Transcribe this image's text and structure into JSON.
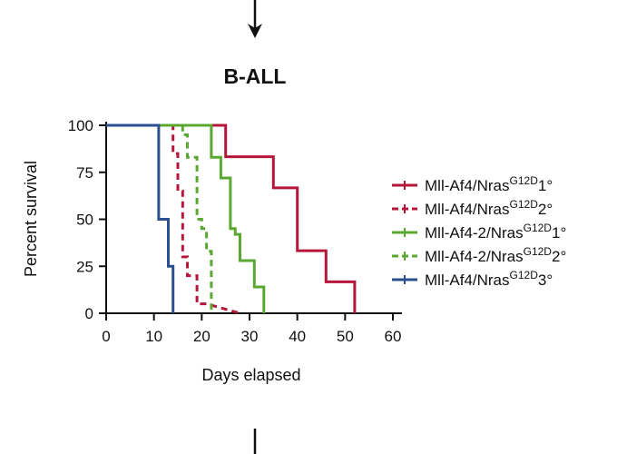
{
  "chart_data": {
    "type": "line",
    "title": "B-ALL",
    "xlabel": "Days elapsed",
    "ylabel": "Percent survival",
    "xlim": [
      0,
      60
    ],
    "ylim": [
      0,
      100
    ],
    "xticks": [
      "0",
      "10",
      "20",
      "30",
      "40",
      "50",
      "60"
    ],
    "yticks": [
      "0",
      "25",
      "50",
      "75",
      "100"
    ],
    "grid": false,
    "legend_position": "right",
    "series": [
      {
        "name": "Mll-Af4/NrasG12D1°",
        "label_parts": [
          "Mll-Af4/Nras",
          "G12D",
          "1°"
        ],
        "color": "#b5173a",
        "dash": "solid",
        "x": [
          0,
          25,
          25,
          35,
          35,
          40,
          40,
          46,
          46,
          52,
          52
        ],
        "y": [
          100,
          100,
          83.3,
          83.3,
          66.7,
          66.7,
          33.3,
          33.3,
          16.7,
          16.7,
          0
        ]
      },
      {
        "name": "Mll-Af4/NrasG12D2°",
        "label_parts": [
          "Mll-Af4/Nras",
          "G12D",
          "2°"
        ],
        "color": "#b5173a",
        "dash": "dashed",
        "x": [
          0,
          14,
          14,
          15,
          15,
          16,
          16,
          17,
          17,
          19,
          19,
          21,
          21,
          28
        ],
        "y": [
          100,
          100,
          85,
          85,
          65,
          65,
          30,
          30,
          20,
          20,
          5,
          5,
          5,
          0
        ]
      },
      {
        "name": "Mll-Af4-2/NrasG12D1°",
        "label_parts": [
          "Mll-Af4-2/Nras",
          "G12D",
          "1°"
        ],
        "color": "#5aa832",
        "dash": "solid",
        "x": [
          0,
          22,
          22,
          24,
          24,
          26,
          26,
          27,
          27,
          28,
          28,
          31,
          31,
          33,
          33
        ],
        "y": [
          100,
          100,
          83,
          83,
          72,
          72,
          45,
          45,
          42,
          42,
          28,
          28,
          14,
          14,
          0
        ]
      },
      {
        "name": "Mll-Af4-2/NrasG12D2°",
        "label_parts": [
          "Mll-Af4-2/Nras",
          "G12D",
          "2°"
        ],
        "color": "#5aa832",
        "dash": "dashed",
        "x": [
          0,
          16,
          16,
          17,
          17,
          19,
          19,
          20,
          20,
          21,
          21,
          22,
          22
        ],
        "y": [
          100,
          100,
          95,
          95,
          83,
          83,
          50,
          50,
          45,
          45,
          33,
          33,
          0
        ]
      },
      {
        "name": "Mll-Af4/NrasG12D3°",
        "label_parts": [
          "Mll-Af4/Nras",
          "G12D",
          "3°"
        ],
        "color": "#2b4f8f",
        "dash": "solid",
        "x": [
          0,
          11,
          11,
          13,
          13,
          14,
          14
        ],
        "y": [
          100,
          100,
          50,
          50,
          25,
          25,
          0
        ]
      }
    ]
  }
}
